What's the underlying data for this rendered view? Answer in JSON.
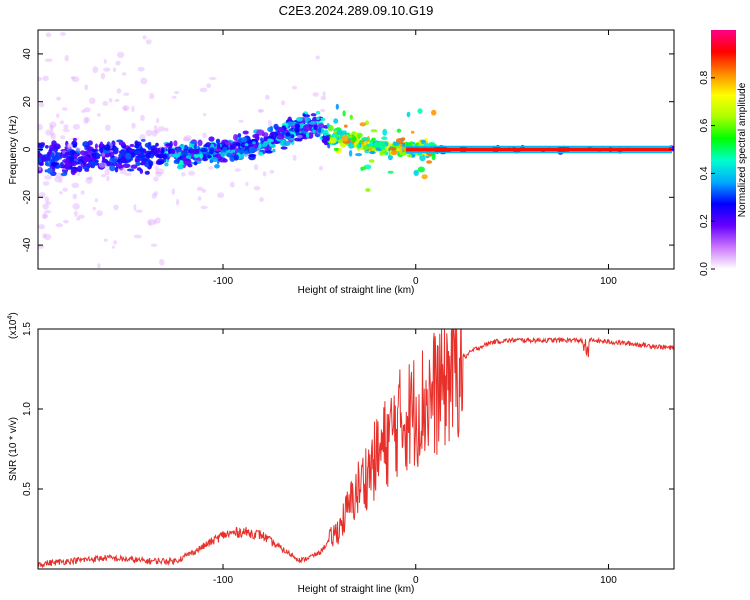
{
  "chart_data": [
    {
      "type": "heatmap",
      "title": "C2E3.2024.289.09.10.G19",
      "xlabel": "Height of straight line (km)",
      "ylabel": "Frequency (Hz)",
      "xlim": [
        -196,
        134
      ],
      "ylim": [
        -50,
        50
      ],
      "x_ticks": [
        -100,
        0,
        100
      ],
      "y_ticks": [
        -40,
        -20,
        0,
        20,
        40
      ],
      "colorbar": {
        "label": "Normalized spectral amplitude",
        "range": [
          0,
          1
        ],
        "ticks": [
          0.0,
          0.2,
          0.4,
          0.6,
          0.8
        ],
        "tick_labels": [
          "0.0",
          "0.2",
          "0.4",
          "0.6",
          "0.8"
        ],
        "colors": [
          "#ffffff",
          "#cc77ff",
          "#6600ff",
          "#0000ff",
          "#00aaff",
          "#00ffcc",
          "#00ff00",
          "#aaff00",
          "#ffff00",
          "#ff8800",
          "#ff0000",
          "#ff0088"
        ]
      },
      "ridge": {
        "x": [
          -196,
          -180,
          -160,
          -140,
          -120,
          -100,
          -80,
          -60,
          -50,
          -45,
          -40,
          -30,
          -20,
          -10,
          0,
          20,
          50,
          100,
          134
        ],
        "y": [
          -3,
          -4,
          -2,
          -3,
          -2,
          0,
          3,
          8,
          10,
          3,
          6,
          3,
          1,
          0.5,
          0,
          0,
          0,
          0,
          0
        ]
      }
    },
    {
      "type": "line",
      "xlabel": "Height of straight line (km)",
      "ylabel": "SNR (10 * v/v)",
      "y_multiplier": "(x10",
      "y_multiplier_exp": "4",
      "y_multiplier_close": ")",
      "xlim": [
        -196,
        134
      ],
      "ylim": [
        0,
        1.5
      ],
      "x_ticks": [
        -100,
        0,
        100
      ],
      "y_ticks": [
        0.5,
        1.0,
        1.5
      ],
      "y_tick_labels": [
        "0.5",
        "1.0",
        "1.5"
      ],
      "line_color": "#e8302a",
      "series_profile": {
        "x": [
          -196,
          -180,
          -160,
          -140,
          -125,
          -115,
          -100,
          -90,
          -80,
          -70,
          -60,
          -50,
          -40,
          -30,
          -20,
          -10,
          0,
          10,
          20,
          25,
          30,
          40,
          50,
          70,
          90,
          110,
          134
        ],
        "y": [
          0.03,
          0.05,
          0.07,
          0.05,
          0.05,
          0.1,
          0.2,
          0.22,
          0.2,
          0.12,
          0.05,
          0.1,
          0.25,
          0.5,
          0.7,
          0.9,
          1.0,
          1.1,
          1.25,
          1.32,
          1.37,
          1.42,
          1.43,
          1.43,
          1.43,
          1.41,
          1.38
        ]
      }
    }
  ]
}
